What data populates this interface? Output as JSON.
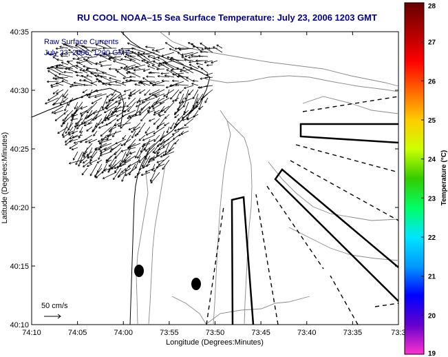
{
  "title": "RU COOL  NOAA–15  Sea Surface Temperature:  July 23, 2006 1203 GMT",
  "annotations": {
    "currents_line1": "Raw Surface Currents",
    "currents_line2": "July 23, 2006, 1200 GMT",
    "scale": "50 cm/s"
  },
  "axes": {
    "xlabel": "Longitude (Degrees:Minutes)",
    "ylabel": "Latitude (Degrees:Minutes)",
    "x_ticks": [
      "74:10",
      "74:05",
      "74:00",
      "73:55",
      "73:50",
      "73:45",
      "73:40",
      "73:35",
      "73:3"
    ],
    "y_ticks": [
      "40:35",
      "40:30",
      "40:25",
      "40:20",
      "40:15",
      "40:10"
    ]
  },
  "colorbar": {
    "label": "Temperature (°C)",
    "ticks": [
      "28",
      "27",
      "26",
      "25",
      "24",
      "23",
      "22",
      "21",
      "20",
      "19"
    ],
    "range": [
      19,
      28
    ],
    "stops": [
      "#ff33cc",
      "#6600cc",
      "#0000ff",
      "#0099ff",
      "#00e5ff",
      "#00ff66",
      "#33cc00",
      "#ccff00",
      "#ffcc00",
      "#ff6600",
      "#ff0000",
      "#b00000",
      "#660000"
    ]
  },
  "colors": {
    "title": "#00008b",
    "contour": "#888888",
    "frame": "#000000"
  }
}
